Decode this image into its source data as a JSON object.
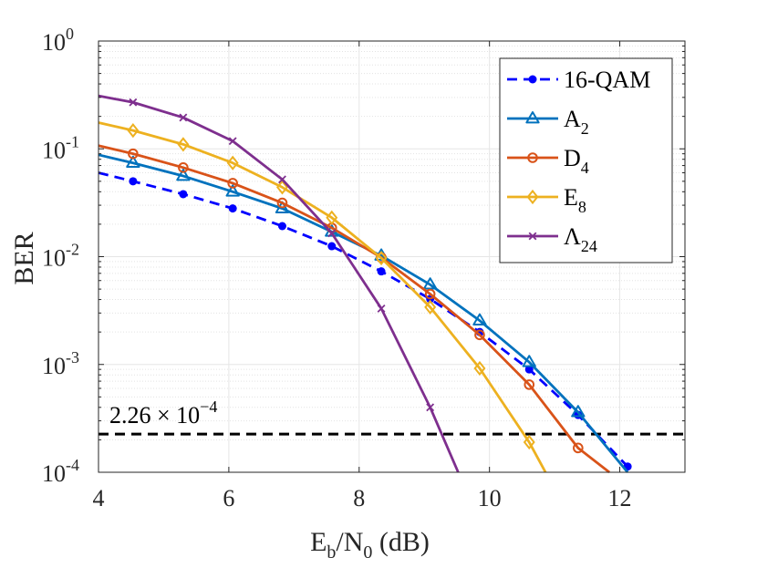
{
  "chart_data": {
    "type": "line",
    "yscale": "log",
    "xlabel": {
      "main": "E",
      "sub1": "b",
      "mid": "/N",
      "sub2": "0",
      "tail": " (dB)"
    },
    "ylabel": "BER",
    "xlim": [
      4,
      13
    ],
    "ylim": [
      0.0001,
      1
    ],
    "x_ticks": [
      {
        "value": 4,
        "label": "4"
      },
      {
        "value": 6,
        "label": "6"
      },
      {
        "value": 8,
        "label": "8"
      },
      {
        "value": 10,
        "label": "10"
      },
      {
        "value": 12,
        "label": "12"
      }
    ],
    "y_ticks": [
      {
        "value": 1,
        "base": "10",
        "exp": "0"
      },
      {
        "value": 0.1,
        "base": "10",
        "exp": "-1"
      },
      {
        "value": 0.01,
        "base": "10",
        "exp": "-2"
      },
      {
        "value": 0.001,
        "base": "10",
        "exp": "-3"
      },
      {
        "value": 0.0001,
        "base": "10",
        "exp": "-4"
      }
    ],
    "grid": true,
    "legend_position": "top-right",
    "series": [
      {
        "name": "16-QAM",
        "label_main": "16-QAM",
        "label_sub": "",
        "color": "#0000ff",
        "marker": "dot",
        "dashed": true,
        "points": [
          [
            4,
            0.06
          ],
          [
            4.53,
            0.05
          ],
          [
            5.3,
            0.038
          ],
          [
            6.06,
            0.028
          ],
          [
            6.82,
            0.0192
          ],
          [
            7.58,
            0.0125
          ],
          [
            8.34,
            0.0073
          ],
          [
            9.09,
            0.00405
          ],
          [
            9.85,
            0.002
          ],
          [
            10.61,
            0.0009
          ],
          [
            11.36,
            0.00034
          ],
          [
            12.12,
            0.000113
          ]
        ],
        "markers": [
          [
            4.53,
            0.05
          ],
          [
            5.3,
            0.038
          ],
          [
            6.06,
            0.028
          ],
          [
            6.82,
            0.0192
          ],
          [
            7.58,
            0.0125
          ],
          [
            8.34,
            0.0073
          ],
          [
            9.09,
            0.00405
          ],
          [
            9.85,
            0.002
          ],
          [
            10.61,
            0.0009
          ],
          [
            11.36,
            0.00034
          ],
          [
            12.12,
            0.000113
          ]
        ]
      },
      {
        "name": "A2",
        "label_main": "A",
        "label_sub": "2",
        "color": "#0072bd",
        "marker": "triangle",
        "dashed": false,
        "points": [
          [
            4,
            0.088
          ],
          [
            4.53,
            0.074
          ],
          [
            5.3,
            0.056
          ],
          [
            6.06,
            0.04
          ],
          [
            6.82,
            0.028
          ],
          [
            7.58,
            0.017
          ],
          [
            8.34,
            0.0102
          ],
          [
            9.09,
            0.0055
          ],
          [
            9.85,
            0.00255
          ],
          [
            10.61,
            0.00105
          ],
          [
            11.36,
            0.00036
          ],
          [
            12.12,
            0.0001
          ]
        ],
        "markers": [
          [
            4.53,
            0.074
          ],
          [
            5.3,
            0.056
          ],
          [
            6.06,
            0.04
          ],
          [
            6.82,
            0.028
          ],
          [
            7.58,
            0.017
          ],
          [
            8.34,
            0.0102
          ],
          [
            9.09,
            0.0055
          ],
          [
            9.85,
            0.00255
          ],
          [
            10.61,
            0.00105
          ],
          [
            11.36,
            0.00036
          ]
        ]
      },
      {
        "name": "D4",
        "label_main": "D",
        "label_sub": "4",
        "color": "#d95319",
        "marker": "circle",
        "dashed": false,
        "points": [
          [
            4,
            0.107
          ],
          [
            4.53,
            0.09
          ],
          [
            5.3,
            0.067
          ],
          [
            6.06,
            0.048
          ],
          [
            6.82,
            0.0315
          ],
          [
            7.58,
            0.0185
          ],
          [
            8.34,
            0.0098
          ],
          [
            9.09,
            0.0045
          ],
          [
            9.85,
            0.00188
          ],
          [
            10.61,
            0.00065
          ],
          [
            11.36,
            0.000168
          ],
          [
            11.84,
            0.0001
          ]
        ],
        "markers": [
          [
            4.53,
            0.09
          ],
          [
            5.3,
            0.067
          ],
          [
            6.06,
            0.048
          ],
          [
            6.82,
            0.0315
          ],
          [
            7.58,
            0.0185
          ],
          [
            8.34,
            0.0098
          ],
          [
            9.09,
            0.0045
          ],
          [
            9.85,
            0.00188
          ],
          [
            10.61,
            0.00065
          ],
          [
            11.36,
            0.000168
          ]
        ]
      },
      {
        "name": "E8",
        "label_main": "E",
        "label_sub": "8",
        "color": "#edb120",
        "marker": "diamond",
        "dashed": false,
        "points": [
          [
            4,
            0.175
          ],
          [
            4.53,
            0.148
          ],
          [
            5.3,
            0.11
          ],
          [
            6.06,
            0.074
          ],
          [
            6.82,
            0.044
          ],
          [
            7.58,
            0.023
          ],
          [
            8.34,
            0.0097
          ],
          [
            9.09,
            0.0034
          ],
          [
            9.85,
            0.00092
          ],
          [
            10.61,
            0.00019
          ],
          [
            10.86,
            0.0001
          ]
        ],
        "markers": [
          [
            4.53,
            0.148
          ],
          [
            5.3,
            0.11
          ],
          [
            6.06,
            0.074
          ],
          [
            6.82,
            0.044
          ],
          [
            7.58,
            0.023
          ],
          [
            8.34,
            0.0097
          ],
          [
            9.09,
            0.0034
          ],
          [
            9.85,
            0.00092
          ],
          [
            10.61,
            0.00019
          ]
        ]
      },
      {
        "name": "Lambda24",
        "label_main": "Λ",
        "label_sub": "24",
        "color": "#7e2f8e",
        "marker": "x",
        "dashed": false,
        "points": [
          [
            4,
            0.31
          ],
          [
            4.53,
            0.27
          ],
          [
            5.3,
            0.195
          ],
          [
            6.06,
            0.118
          ],
          [
            6.82,
            0.052
          ],
          [
            7.58,
            0.0165
          ],
          [
            8.34,
            0.0033
          ],
          [
            9.09,
            0.0004
          ],
          [
            9.52,
            0.0001
          ]
        ],
        "markers": [
          [
            4.53,
            0.27
          ],
          [
            5.3,
            0.195
          ],
          [
            6.06,
            0.118
          ],
          [
            6.82,
            0.052
          ],
          [
            7.58,
            0.0165
          ],
          [
            8.34,
            0.0033
          ],
          [
            9.09,
            0.0004
          ]
        ]
      }
    ],
    "threshold": {
      "value": 0.000226,
      "label_main": "2.26 × 10",
      "label_exp": "−4",
      "color": "#000000"
    }
  }
}
